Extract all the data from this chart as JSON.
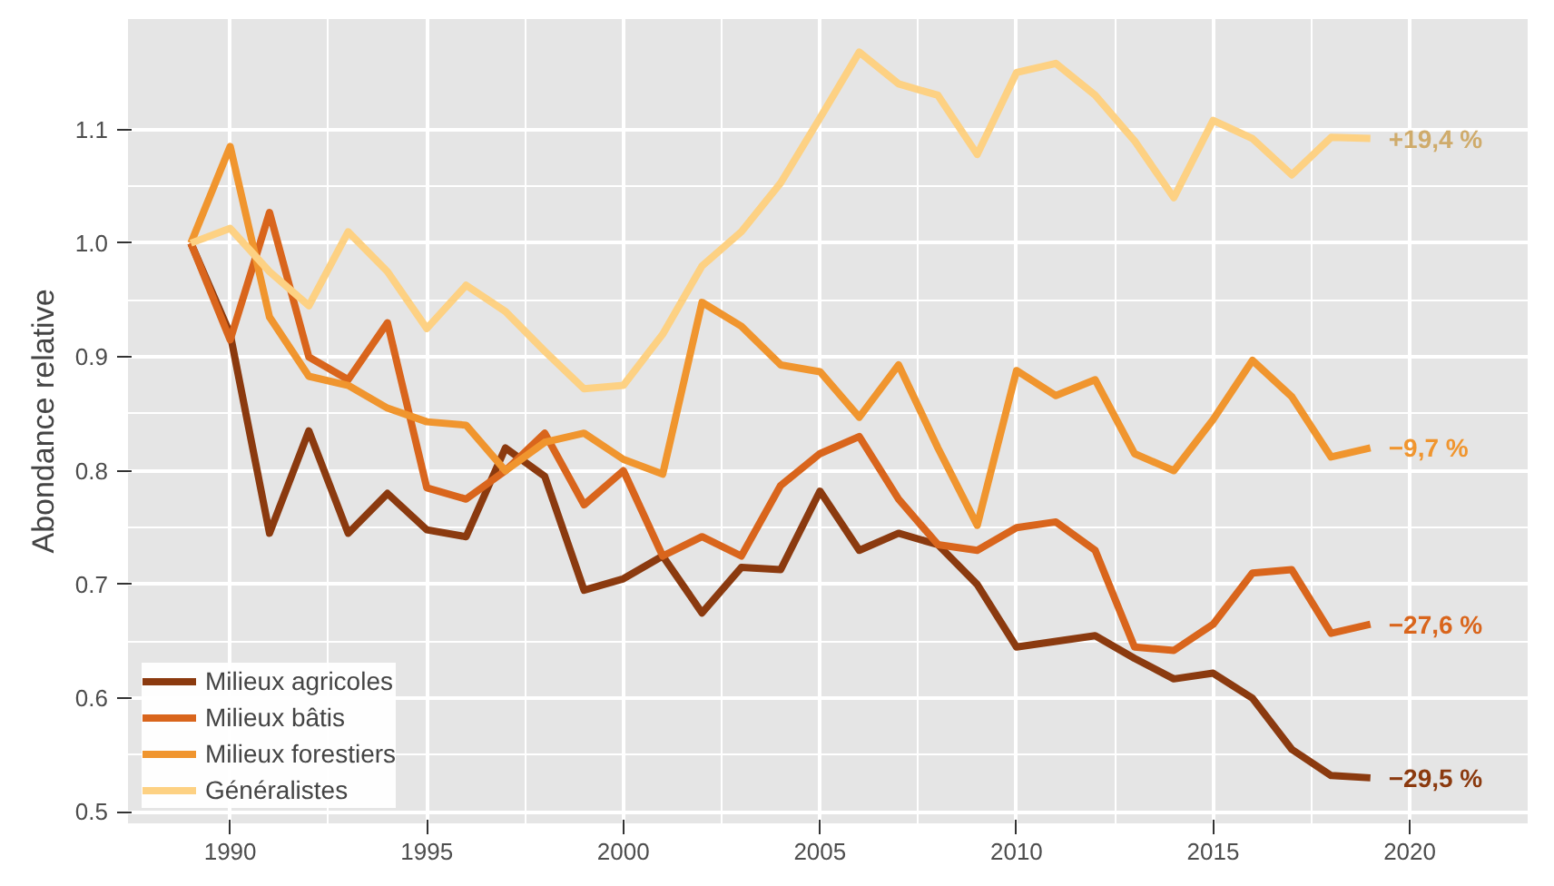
{
  "chart_data": {
    "type": "line",
    "ylabel": "Abondance relative",
    "x": [
      1989,
      1990,
      1991,
      1992,
      1993,
      1994,
      1995,
      1996,
      1997,
      1998,
      1999,
      2000,
      2001,
      2002,
      2003,
      2004,
      2005,
      2006,
      2007,
      2008,
      2009,
      2010,
      2011,
      2012,
      2013,
      2014,
      2015,
      2016,
      2017,
      2018,
      2019
    ],
    "series": [
      {
        "name": "Milieux agricoles",
        "color": "#8b3a0f",
        "values": [
          1.0,
          0.92,
          0.745,
          0.835,
          0.745,
          0.78,
          0.748,
          0.742,
          0.82,
          0.795,
          0.695,
          0.705,
          0.725,
          0.675,
          0.715,
          0.713,
          0.782,
          0.73,
          0.745,
          0.735,
          0.7,
          0.645,
          0.65,
          0.655,
          0.635,
          0.617,
          0.622,
          0.6,
          0.555,
          0.532,
          0.53
        ]
      },
      {
        "name": "Milieux bâtis",
        "color": "#d9651c",
        "values": [
          1.0,
          0.915,
          1.027,
          0.9,
          0.88,
          0.93,
          0.785,
          0.775,
          0.8,
          0.833,
          0.77,
          0.8,
          0.725,
          0.742,
          0.725,
          0.787,
          0.815,
          0.83,
          0.775,
          0.735,
          0.73,
          0.75,
          0.755,
          0.73,
          0.645,
          0.642,
          0.665,
          0.71,
          0.713,
          0.657,
          0.665
        ]
      },
      {
        "name": "Milieux forestiers",
        "color": "#f0952e",
        "values": [
          1.0,
          1.085,
          0.935,
          0.883,
          0.875,
          0.855,
          0.843,
          0.84,
          0.8,
          0.825,
          0.833,
          0.81,
          0.797,
          0.948,
          0.927,
          0.893,
          0.887,
          0.847,
          0.893,
          0.82,
          0.752,
          0.888,
          0.866,
          0.88,
          0.815,
          0.8,
          0.845,
          0.897,
          0.865,
          0.812,
          0.82
        ]
      },
      {
        "name": "Généralistes",
        "color": "#fdd183",
        "values": [
          1.0,
          1.013,
          0.975,
          0.945,
          1.01,
          0.975,
          0.925,
          0.963,
          0.94,
          0.905,
          0.872,
          0.875,
          0.92,
          0.98,
          1.01,
          1.053,
          1.11,
          1.168,
          1.14,
          1.13,
          1.078,
          1.15,
          1.158,
          1.13,
          1.09,
          1.04,
          1.108,
          1.092,
          1.06,
          1.093,
          1.092
        ]
      }
    ],
    "annotations": [
      "−29,5 %",
      "−27,6 %",
      "−9,7 %",
      "+19,4 %"
    ],
    "xlim": [
      1987.4,
      2023
    ],
    "ylim": [
      0.49,
      1.197
    ],
    "xticks": [
      1990,
      1995,
      2000,
      2005,
      2010,
      2015,
      2020
    ],
    "yticks": [
      0.5,
      0.6,
      0.7,
      0.8,
      0.9,
      {
        "value": 1,
        "label": "1.0"
      },
      1.1
    ],
    "grid": true,
    "legend": "bottom left",
    "line_style": "solid",
    "marker": "none"
  }
}
